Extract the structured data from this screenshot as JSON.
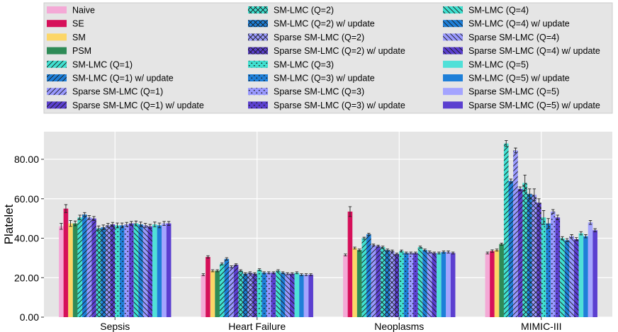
{
  "chart_data": {
    "type": "bar",
    "title": "",
    "xlabel": "",
    "ylabel": "Platelet",
    "ylim": [
      0,
      94
    ],
    "yticks": [
      0,
      20,
      40,
      60,
      80
    ],
    "ytick_labels": [
      "0.00",
      "20.00",
      "40.00",
      "60.00",
      "80.00"
    ],
    "grid": true,
    "legend_position": "top",
    "categories": [
      "Sepsis",
      "Heart Failure",
      "Neoplasms",
      "MIMIC-III"
    ],
    "series": [
      {
        "name": "Naive",
        "color": "#f4a9d6",
        "hatch": "none",
        "values": [
          46.0,
          21.5,
          31.5,
          32.5
        ],
        "errors": [
          1.5,
          0.5,
          0.5,
          0.5
        ]
      },
      {
        "name": "SE",
        "color": "#d6105a",
        "hatch": "none",
        "values": [
          55.0,
          30.5,
          53.5,
          33.5
        ],
        "errors": [
          2.0,
          0.6,
          2.5,
          0.6
        ]
      },
      {
        "name": "SM",
        "color": "#fcd667",
        "hatch": "none",
        "values": [
          47.5,
          23.5,
          35.0,
          34.0
        ],
        "errors": [
          1.5,
          0.5,
          0.5,
          0.5
        ]
      },
      {
        "name": "PSM",
        "color": "#2e8b57",
        "hatch": "none",
        "values": [
          47.5,
          23.5,
          34.0,
          37.0
        ],
        "errors": [
          1.2,
          0.5,
          0.5,
          0.5
        ]
      },
      {
        "name": "SM-LMC (Q=1)",
        "color": "#40e0d0",
        "hatch": "fwd",
        "values": [
          50.5,
          27.0,
          40.0,
          88.0
        ],
        "errors": [
          1.2,
          0.5,
          0.5,
          1.5
        ]
      },
      {
        "name": "SM-LMC (Q=1) w/ update",
        "color": "#1e7fd8",
        "hatch": "fwd",
        "values": [
          52.0,
          29.5,
          42.0,
          69.0
        ],
        "errors": [
          1.0,
          0.6,
          0.5,
          1.0
        ]
      },
      {
        "name": "Sparse SM-LMC (Q=1)",
        "color": "#9999ff",
        "hatch": "fwd",
        "values": [
          50.5,
          25.5,
          36.5,
          84.5
        ],
        "errors": [
          1.0,
          0.5,
          0.5,
          1.2
        ]
      },
      {
        "name": "Sparse SM-LMC (Q=1) w/ update",
        "color": "#5b3fd0",
        "hatch": "fwd",
        "values": [
          50.0,
          26.5,
          36.0,
          65.0
        ],
        "errors": [
          1.0,
          0.5,
          0.5,
          1.0
        ]
      },
      {
        "name": "SM-LMC (Q=2)",
        "color": "#40e0d0",
        "hatch": "cross",
        "values": [
          45.0,
          23.5,
          35.5,
          68.0
        ],
        "errors": [
          1.2,
          0.5,
          0.5,
          4.0
        ]
      },
      {
        "name": "SM-LMC (Q=2) w/ update",
        "color": "#1e7fd8",
        "hatch": "cross",
        "values": [
          45.5,
          22.0,
          34.0,
          62.5
        ],
        "errors": [
          1.2,
          0.5,
          0.5,
          2.5
        ]
      },
      {
        "name": "Sparse SM-LMC (Q=2)",
        "color": "#9999ff",
        "hatch": "cross",
        "values": [
          46.5,
          22.5,
          33.5,
          62.0
        ],
        "errors": [
          1.0,
          0.5,
          0.5,
          3.0
        ]
      },
      {
        "name": "Sparse SM-LMC (Q=2) w/ update",
        "color": "#5b3fd0",
        "hatch": "cross",
        "values": [
          47.0,
          22.0,
          32.0,
          58.0
        ],
        "errors": [
          1.0,
          0.5,
          0.5,
          2.0
        ]
      },
      {
        "name": "SM-LMC (Q=3)",
        "color": "#40e0d0",
        "hatch": "dots",
        "values": [
          46.5,
          24.0,
          33.5,
          50.5
        ],
        "errors": [
          1.2,
          0.5,
          0.5,
          3.5
        ]
      },
      {
        "name": "SM-LMC (Q=3) w/ update",
        "color": "#1e7fd8",
        "hatch": "dots",
        "values": [
          46.5,
          22.5,
          32.5,
          47.5
        ],
        "errors": [
          1.2,
          0.5,
          0.5,
          2.5
        ]
      },
      {
        "name": "Sparse SM-LMC (Q=3)",
        "color": "#9999ff",
        "hatch": "dots",
        "values": [
          47.0,
          22.5,
          32.5,
          53.5
        ],
        "errors": [
          1.0,
          0.5,
          0.5,
          1.0
        ]
      },
      {
        "name": "Sparse SM-LMC (Q=3) w/ update",
        "color": "#5b3fd0",
        "hatch": "dots",
        "values": [
          47.5,
          22.5,
          32.5,
          50.5
        ],
        "errors": [
          1.0,
          0.5,
          0.5,
          1.2
        ]
      },
      {
        "name": "SM-LMC (Q=4)",
        "color": "#40e0d0",
        "hatch": "back",
        "values": [
          47.5,
          23.5,
          35.5,
          40.0
        ],
        "errors": [
          1.2,
          0.5,
          0.5,
          0.8
        ]
      },
      {
        "name": "SM-LMC (Q=4) w/ update",
        "color": "#1e7fd8",
        "hatch": "back",
        "values": [
          47.0,
          22.5,
          34.0,
          39.0
        ],
        "errors": [
          1.2,
          0.5,
          0.5,
          0.8
        ]
      },
      {
        "name": "Sparse SM-LMC (Q=4)",
        "color": "#9999ff",
        "hatch": "back",
        "values": [
          46.5,
          22.0,
          33.0,
          41.0
        ],
        "errors": [
          1.0,
          0.5,
          0.5,
          0.8
        ]
      },
      {
        "name": "Sparse SM-LMC (Q=4) w/ update",
        "color": "#5b3fd0",
        "hatch": "back",
        "values": [
          46.0,
          22.0,
          32.5,
          39.5
        ],
        "errors": [
          1.0,
          0.5,
          0.5,
          0.8
        ]
      },
      {
        "name": "SM-LMC (Q=5)",
        "color": "#4fe0d8",
        "hatch": "none",
        "values": [
          47.0,
          22.5,
          32.5,
          42.5
        ],
        "errors": [
          1.2,
          0.5,
          0.5,
          0.8
        ]
      },
      {
        "name": "SM-LMC (Q=5) w/ update",
        "color": "#1e7fd8",
        "hatch": "none",
        "values": [
          46.5,
          21.5,
          33.0,
          41.0
        ],
        "errors": [
          1.2,
          0.5,
          0.5,
          0.8
        ]
      },
      {
        "name": "Sparse SM-LMC (Q=5)",
        "color": "#a4a4ff",
        "hatch": "none",
        "values": [
          47.5,
          21.5,
          33.0,
          48.0
        ],
        "errors": [
          1.0,
          0.5,
          0.5,
          1.0
        ]
      },
      {
        "name": "Sparse SM-LMC (Q=5) w/ update",
        "color": "#5b3fd0",
        "hatch": "none",
        "values": [
          47.5,
          21.5,
          32.5,
          44.0
        ],
        "errors": [
          1.0,
          0.5,
          0.5,
          0.8
        ]
      }
    ]
  }
}
